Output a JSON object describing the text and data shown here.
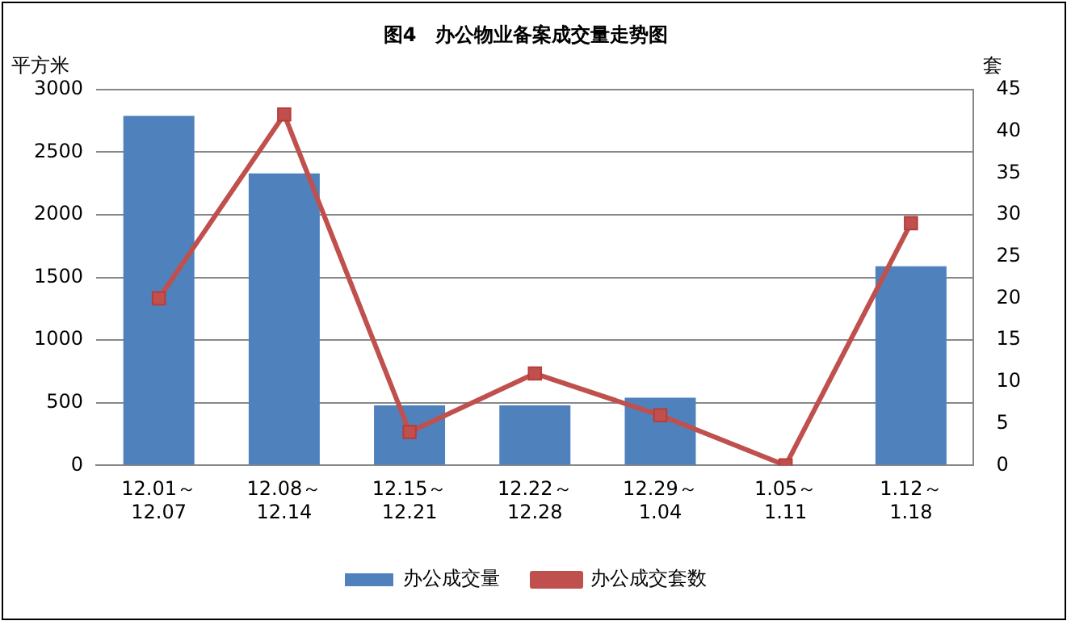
{
  "chart_data": {
    "type": "bar",
    "title": "图4　办公物业备案成交量走势图",
    "ylabel": "平方米",
    "y2label": "套",
    "categories": [
      "12.01～\n12.07",
      "12.08～\n12.14",
      "12.15～\n12.21",
      "12.22～\n12.28",
      "12.29～\n1.04",
      "1.05～\n1.11",
      "1.12～\n1.18"
    ],
    "series": [
      {
        "name": "办公成交量",
        "color": "#4f81bd",
        "values": [
          2790,
          2330,
          480,
          480,
          540,
          0,
          1590
        ]
      },
      {
        "name": "办公成交套数",
        "type": "line",
        "axis": "y2",
        "color": "#c0504d",
        "marker": "square",
        "values": [
          20,
          42,
          4,
          11,
          6,
          0,
          29
        ]
      }
    ],
    "ylim": [
      0,
      3000
    ],
    "yticks": [
      0,
      500,
      1000,
      1500,
      2000,
      2500,
      3000
    ],
    "y2lim": [
      0,
      45
    ],
    "y2ticks": [
      0,
      5,
      10,
      15,
      20,
      25,
      30,
      35,
      40,
      45
    ],
    "grid": "y",
    "legend": "bottom"
  }
}
